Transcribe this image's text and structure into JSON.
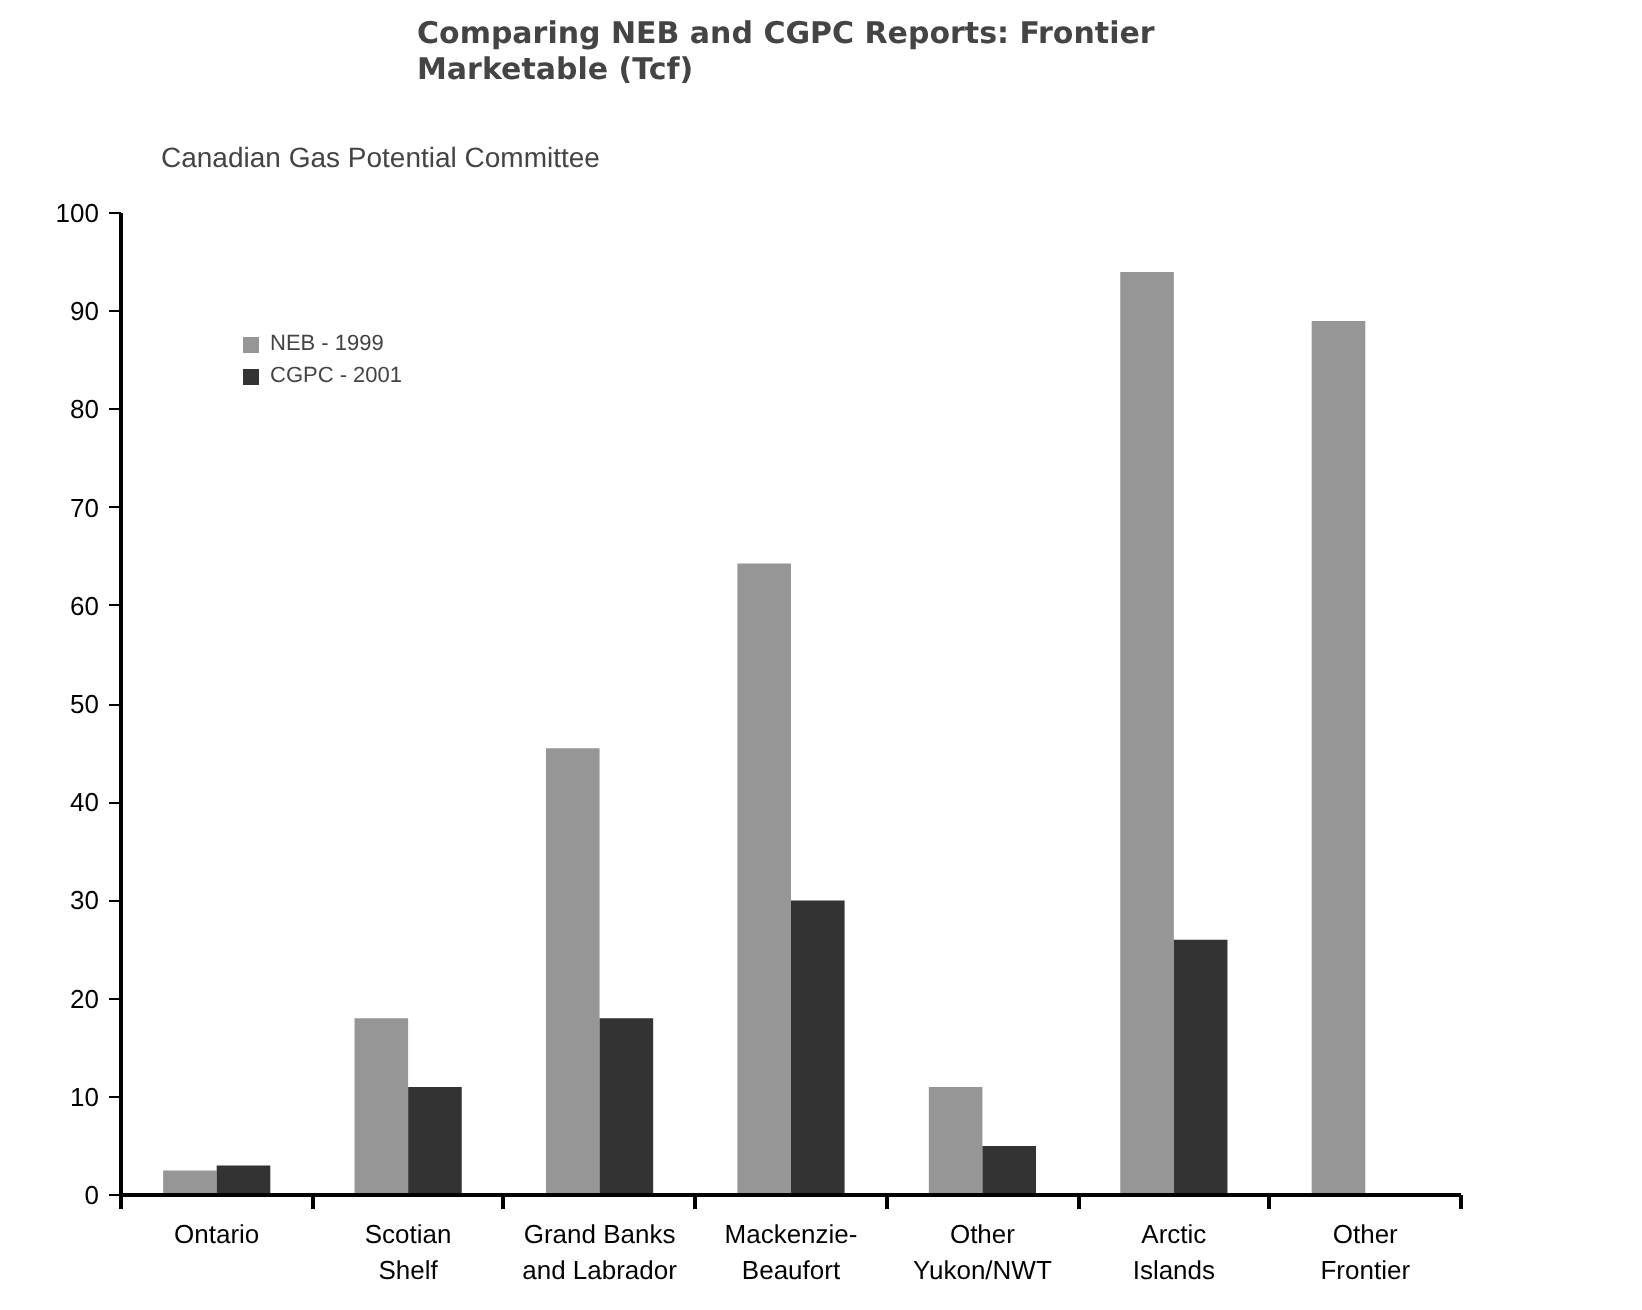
{
  "chart_data": {
    "type": "bar",
    "title": "Comparing NEB and CGPC Reports:  Frontier\nMarketable (Tcf)",
    "annotations": [
      "Canadian Gas Potential Committee"
    ],
    "categories": [
      "Ontario",
      "Scotian\nShelf",
      "Grand Banks\nand Labrador",
      "Mackenzie-\nBeaufort",
      "Other\nYukon/NWT",
      "Arctic\nIslands",
      "Other\nFrontier"
    ],
    "series": [
      {
        "name": "NEB - 1999",
        "color": "#969696",
        "values": [
          2.5,
          18,
          45.5,
          64.3,
          11,
          94,
          89
        ]
      },
      {
        "name": "CGPC - 2001",
        "color": "#333333",
        "values": [
          3,
          11,
          18,
          30,
          5,
          26,
          null
        ]
      }
    ],
    "ylim": [
      0,
      100
    ],
    "yticks": [
      0,
      10,
      20,
      30,
      40,
      50,
      60,
      70,
      80,
      90,
      100
    ],
    "grid": false,
    "legend": "top left"
  }
}
